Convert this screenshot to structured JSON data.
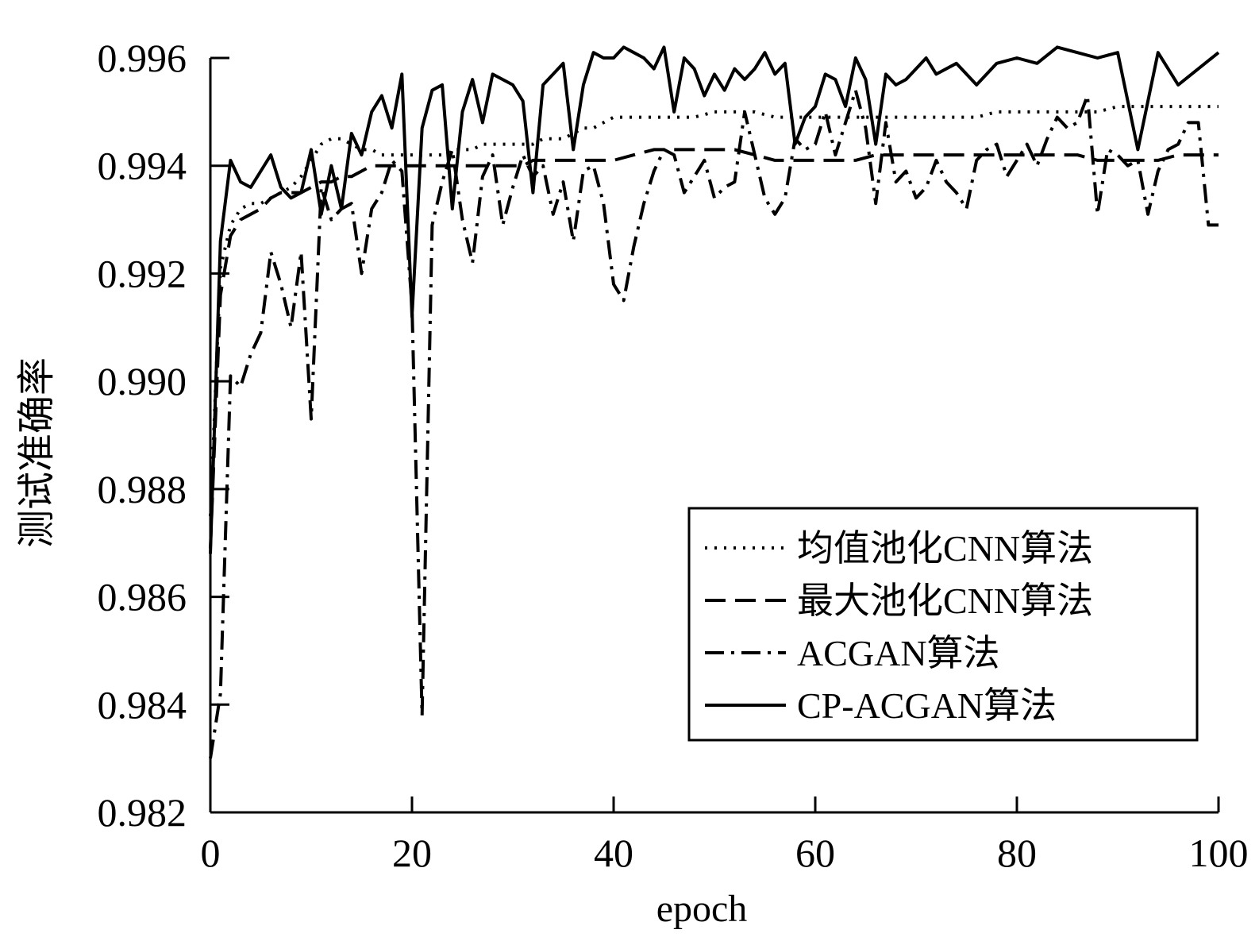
{
  "chart_data": {
    "type": "line",
    "xlabel": "epoch",
    "ylabel": "测试准确率",
    "xlim": [
      0,
      100
    ],
    "ylim": [
      0.982,
      0.996
    ],
    "xticks": [
      "0",
      "20",
      "40",
      "60",
      "80",
      "100"
    ],
    "yticks": [
      "0.982",
      "0.984",
      "0.986",
      "0.988",
      "0.990",
      "0.992",
      "0.994",
      "0.996"
    ],
    "grid": false,
    "legend_position": "bottom-right",
    "series": [
      {
        "name": "均值池化CNN算法",
        "style": "dotted",
        "x": [
          0,
          1,
          2,
          3,
          4,
          5,
          6,
          7,
          8,
          9,
          10,
          11,
          12,
          13,
          14,
          15,
          16,
          17,
          18,
          19,
          20,
          21,
          22,
          23,
          24,
          25,
          26,
          27,
          28,
          29,
          30,
          31,
          32,
          33,
          34,
          35,
          36,
          37,
          38,
          39,
          40,
          42,
          44,
          46,
          48,
          50,
          52,
          54,
          56,
          58,
          60,
          62,
          64,
          66,
          68,
          70,
          72,
          74,
          76,
          78,
          80,
          82,
          84,
          86,
          88,
          90,
          92,
          94,
          96,
          98,
          100
        ],
        "values": [
          0.9875,
          0.9921,
          0.9929,
          0.9932,
          0.9933,
          0.9933,
          0.9934,
          0.9935,
          0.9936,
          0.9938,
          0.9941,
          0.9944,
          0.9945,
          0.9945,
          0.9944,
          0.9943,
          0.9943,
          0.9942,
          0.9942,
          0.9942,
          0.9942,
          0.9942,
          0.9942,
          0.9942,
          0.9943,
          0.9943,
          0.9943,
          0.9944,
          0.9944,
          0.9944,
          0.9944,
          0.9944,
          0.9944,
          0.9945,
          0.9945,
          0.9945,
          0.9946,
          0.9947,
          0.9947,
          0.9948,
          0.9949,
          0.9949,
          0.9949,
          0.9949,
          0.9949,
          0.995,
          0.995,
          0.995,
          0.9949,
          0.9949,
          0.9949,
          0.9949,
          0.9949,
          0.9949,
          0.9949,
          0.9949,
          0.9949,
          0.9949,
          0.9949,
          0.995,
          0.995,
          0.995,
          0.995,
          0.995,
          0.995,
          0.9951,
          0.9951,
          0.9951,
          0.9951,
          0.9951,
          0.9951
        ]
      },
      {
        "name": "最大池化CNN算法",
        "style": "dashed",
        "x": [
          0,
          1,
          2,
          3,
          4,
          5,
          6,
          7,
          8,
          9,
          10,
          11,
          12,
          13,
          14,
          15,
          16,
          17,
          18,
          19,
          20,
          21,
          22,
          23,
          24,
          25,
          26,
          27,
          28,
          29,
          30,
          31,
          32,
          33,
          34,
          35,
          36,
          37,
          38,
          39,
          40,
          42,
          44,
          46,
          48,
          50,
          52,
          54,
          56,
          58,
          60,
          62,
          64,
          66,
          68,
          70,
          72,
          74,
          76,
          78,
          80,
          82,
          84,
          86,
          88,
          90,
          92,
          94,
          96,
          98,
          100
        ],
        "values": [
          0.9869,
          0.9916,
          0.9927,
          0.993,
          0.9931,
          0.9932,
          0.9934,
          0.9935,
          0.9935,
          0.9935,
          0.9936,
          0.9937,
          0.9937,
          0.9938,
          0.9938,
          0.9939,
          0.994,
          0.994,
          0.994,
          0.994,
          0.994,
          0.994,
          0.994,
          0.994,
          0.994,
          0.994,
          0.994,
          0.994,
          0.994,
          0.994,
          0.994,
          0.994,
          0.9941,
          0.9941,
          0.9941,
          0.9941,
          0.9941,
          0.9941,
          0.9941,
          0.9941,
          0.9941,
          0.9942,
          0.9943,
          0.9943,
          0.9943,
          0.9943,
          0.9943,
          0.9942,
          0.9941,
          0.9941,
          0.9941,
          0.9941,
          0.9941,
          0.9942,
          0.9942,
          0.9942,
          0.9942,
          0.9942,
          0.9942,
          0.9942,
          0.9942,
          0.9942,
          0.9942,
          0.9942,
          0.9941,
          0.9941,
          0.9941,
          0.9941,
          0.9942,
          0.9942,
          0.9942
        ]
      },
      {
        "name": "ACGAN算法",
        "style": "dash-dot",
        "x": [
          0,
          1,
          2,
          3,
          4,
          5,
          6,
          7,
          8,
          9,
          10,
          11,
          12,
          13,
          14,
          15,
          16,
          17,
          18,
          19,
          20,
          21,
          22,
          23,
          24,
          25,
          26,
          27,
          28,
          29,
          30,
          31,
          32,
          33,
          34,
          35,
          36,
          37,
          38,
          39,
          40,
          41,
          42,
          43,
          44,
          45,
          46,
          47,
          48,
          49,
          50,
          51,
          52,
          53,
          54,
          55,
          56,
          57,
          58,
          59,
          60,
          61,
          62,
          63,
          64,
          65,
          66,
          67,
          68,
          69,
          70,
          71,
          72,
          73,
          74,
          75,
          76,
          77,
          78,
          79,
          80,
          81,
          82,
          83,
          84,
          85,
          86,
          87,
          88,
          89,
          90,
          91,
          92,
          93,
          94,
          95,
          96,
          97,
          98,
          99,
          100
        ],
        "values": [
          0.983,
          0.9842,
          0.9901,
          0.9899,
          0.9905,
          0.9909,
          0.9924,
          0.9918,
          0.991,
          0.9924,
          0.9893,
          0.9936,
          0.993,
          0.9932,
          0.9933,
          0.992,
          0.9932,
          0.9935,
          0.9941,
          0.9939,
          0.9914,
          0.9838,
          0.9929,
          0.9937,
          0.9943,
          0.993,
          0.9922,
          0.9938,
          0.9942,
          0.9929,
          0.9936,
          0.9942,
          0.9938,
          0.994,
          0.9931,
          0.9937,
          0.9926,
          0.9939,
          0.994,
          0.9933,
          0.9918,
          0.9915,
          0.9925,
          0.9933,
          0.9939,
          0.9943,
          0.9942,
          0.9935,
          0.9938,
          0.9941,
          0.9934,
          0.9936,
          0.9937,
          0.995,
          0.9942,
          0.9934,
          0.9931,
          0.9934,
          0.9945,
          0.9943,
          0.9944,
          0.995,
          0.9942,
          0.9948,
          0.9954,
          0.9947,
          0.9933,
          0.9948,
          0.9937,
          0.9939,
          0.9934,
          0.9936,
          0.9941,
          0.9937,
          0.9935,
          0.9932,
          0.9941,
          0.9943,
          0.9944,
          0.9938,
          0.9941,
          0.9944,
          0.994,
          0.9945,
          0.9949,
          0.9947,
          0.9948,
          0.9953,
          0.9931,
          0.9943,
          0.9942,
          0.994,
          0.9941,
          0.9931,
          0.9939,
          0.9943,
          0.9944,
          0.9948,
          0.9948,
          0.9929,
          0.9929
        ]
      },
      {
        "name": "CP-ACGAN算法",
        "style": "solid",
        "x": [
          0,
          1,
          2,
          3,
          4,
          5,
          6,
          7,
          8,
          9,
          10,
          11,
          12,
          13,
          14,
          15,
          16,
          17,
          18,
          19,
          20,
          21,
          22,
          23,
          24,
          25,
          26,
          27,
          28,
          29,
          30,
          31,
          32,
          33,
          34,
          35,
          36,
          37,
          38,
          39,
          40,
          41,
          42,
          43,
          44,
          45,
          46,
          47,
          48,
          49,
          50,
          51,
          52,
          53,
          54,
          55,
          56,
          57,
          58,
          59,
          60,
          61,
          62,
          63,
          64,
          65,
          66,
          67,
          68,
          69,
          70,
          71,
          72,
          74,
          76,
          78,
          80,
          82,
          84,
          86,
          88,
          90,
          92,
          94,
          96,
          98,
          100
        ],
        "values": [
          0.9868,
          0.9926,
          0.9941,
          0.9937,
          0.9936,
          0.9939,
          0.9942,
          0.9936,
          0.9934,
          0.9935,
          0.9943,
          0.9931,
          0.994,
          0.9932,
          0.9946,
          0.9942,
          0.995,
          0.9953,
          0.9947,
          0.9957,
          0.9912,
          0.9947,
          0.9954,
          0.9955,
          0.9932,
          0.995,
          0.9956,
          0.9948,
          0.9957,
          0.9956,
          0.9955,
          0.9952,
          0.9935,
          0.9955,
          0.9957,
          0.9959,
          0.9943,
          0.9955,
          0.9961,
          0.996,
          0.996,
          0.9962,
          0.9961,
          0.996,
          0.9958,
          0.9962,
          0.995,
          0.996,
          0.9958,
          0.9953,
          0.9957,
          0.9954,
          0.9958,
          0.9956,
          0.9958,
          0.9961,
          0.9957,
          0.9959,
          0.9944,
          0.9949,
          0.9951,
          0.9957,
          0.9956,
          0.9951,
          0.996,
          0.9956,
          0.9944,
          0.9957,
          0.9955,
          0.9956,
          0.9958,
          0.996,
          0.9957,
          0.9959,
          0.9955,
          0.9959,
          0.996,
          0.9959,
          0.9962,
          0.9961,
          0.996,
          0.9961,
          0.9943,
          0.9961,
          0.9955,
          0.9958,
          0.9961
        ]
      }
    ]
  }
}
